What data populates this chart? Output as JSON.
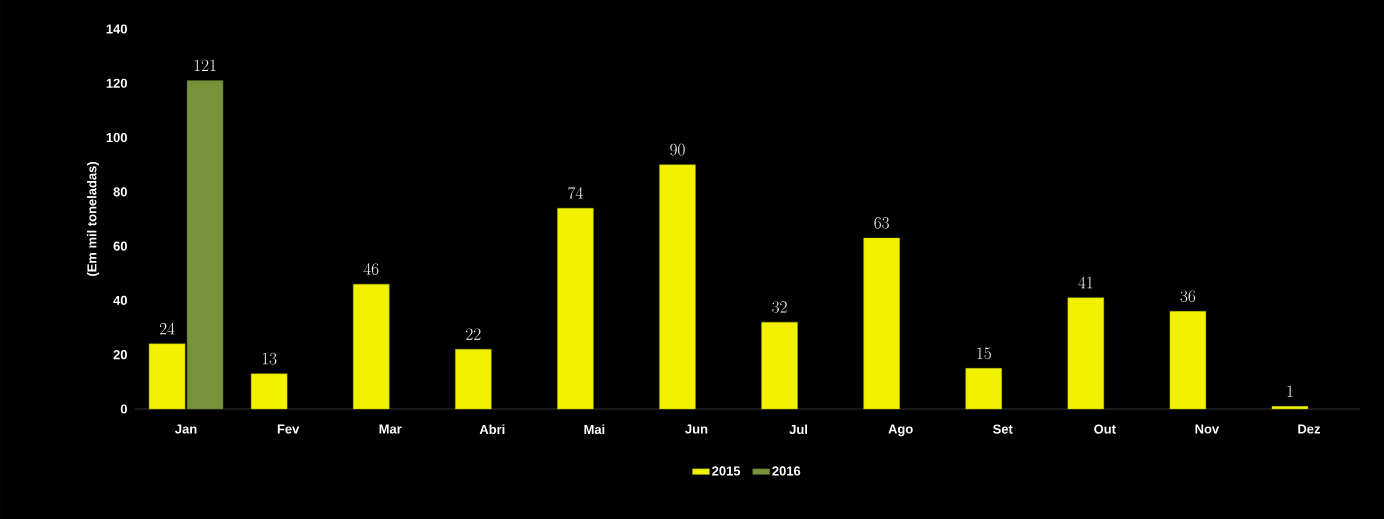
{
  "chart_data": {
    "type": "bar",
    "ylabel": "(Em mil toneladas)",
    "categories": [
      "Jan",
      "Fev",
      "Mar",
      "Abri",
      "Mai",
      "Jun",
      "Jul",
      "Ago",
      "Set",
      "Out",
      "Nov",
      "Dez"
    ],
    "series": [
      {
        "name": "2015",
        "color": "#f2f200",
        "values": [
          24,
          13,
          46,
          22,
          74,
          90,
          32,
          63,
          15,
          41,
          36,
          1
        ]
      },
      {
        "name": "2016",
        "color": "#77933c",
        "values": [
          121,
          null,
          null,
          null,
          null,
          null,
          null,
          null,
          null,
          null,
          null,
          null
        ]
      }
    ],
    "ylim": [
      0,
      140
    ],
    "yticks": [
      0,
      20,
      40,
      60,
      80,
      100,
      120,
      140
    ],
    "data_labels": true,
    "legend": "bottom",
    "grid": false
  }
}
